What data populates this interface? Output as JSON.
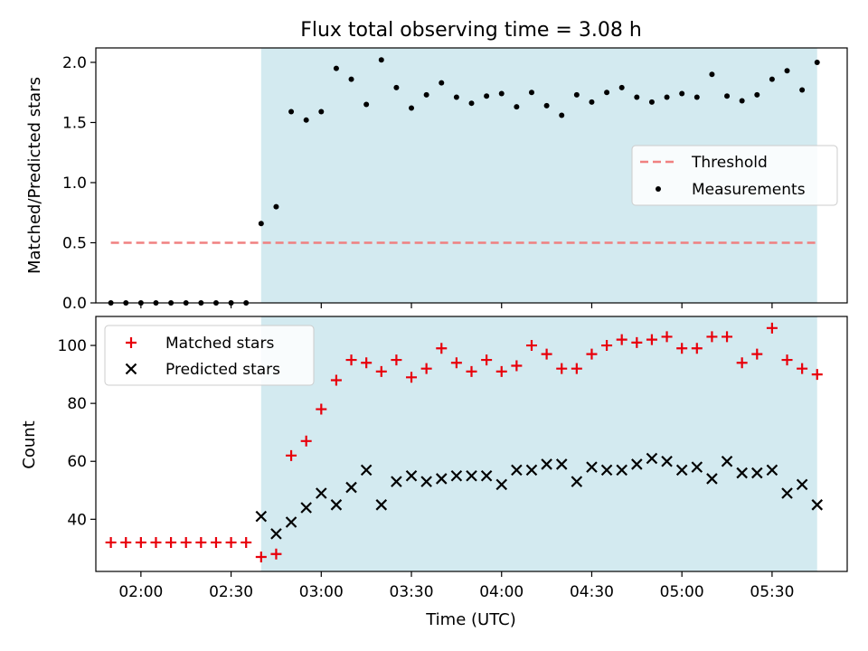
{
  "chart_data": [
    {
      "type": "scatter",
      "title": "Flux total observing time = 3.08 h",
      "xlabel": "",
      "ylabel": "Matched/Predicted stars",
      "xlim": [
        "01:45",
        "05:55"
      ],
      "ylim": [
        0,
        2.12
      ],
      "yticks": [
        "0.0",
        "0.5",
        "1.0",
        "1.5",
        "2.0"
      ],
      "grid": false,
      "legend_position": "center-right",
      "shaded_span": {
        "from": "02:40",
        "to": "05:45",
        "color": "#d3eaf0"
      },
      "threshold": {
        "name": "Threshold",
        "value": 0.5,
        "x_from": "01:50",
        "x_to": "05:45",
        "color": "#f08080"
      },
      "series": [
        {
          "name": "Measurements",
          "marker": "dot",
          "color": "#000000",
          "x": [
            "01:50",
            "01:55",
            "02:00",
            "02:05",
            "02:10",
            "02:15",
            "02:20",
            "02:25",
            "02:30",
            "02:35",
            "02:40",
            "02:45",
            "02:50",
            "02:55",
            "03:00",
            "03:05",
            "03:10",
            "03:15",
            "03:20",
            "03:25",
            "03:30",
            "03:35",
            "03:40",
            "03:45",
            "03:50",
            "03:55",
            "04:00",
            "04:05",
            "04:10",
            "04:15",
            "04:20",
            "04:25",
            "04:30",
            "04:35",
            "04:40",
            "04:45",
            "04:50",
            "04:55",
            "05:00",
            "05:05",
            "05:10",
            "05:15",
            "05:20",
            "05:25",
            "05:30",
            "05:35",
            "05:40",
            "05:45"
          ],
          "y": [
            0,
            0,
            0,
            0,
            0,
            0,
            0,
            0,
            0,
            0,
            0.66,
            0.8,
            1.59,
            1.52,
            1.59,
            1.95,
            1.86,
            1.65,
            2.02,
            1.79,
            1.62,
            1.73,
            1.83,
            1.71,
            1.66,
            1.72,
            1.74,
            1.63,
            1.75,
            1.64,
            1.56,
            1.73,
            1.67,
            1.75,
            1.79,
            1.71,
            1.67,
            1.71,
            1.74,
            1.71,
            1.9,
            1.72,
            1.68,
            1.73,
            1.86,
            1.93,
            1.77,
            2.0
          ]
        }
      ]
    },
    {
      "type": "scatter",
      "title": "",
      "xlabel": "Time (UTC)",
      "ylabel": "Count",
      "xlim": [
        "01:45",
        "05:55"
      ],
      "ylim": [
        22,
        110
      ],
      "yticks": [
        "40",
        "60",
        "80",
        "100"
      ],
      "xticks": [
        "02:00",
        "02:30",
        "03:00",
        "03:30",
        "04:00",
        "04:30",
        "05:00",
        "05:30"
      ],
      "grid": false,
      "legend_position": "top-left",
      "shaded_span": {
        "from": "02:40",
        "to": "05:45",
        "color": "#d3eaf0"
      },
      "series": [
        {
          "name": "Matched stars",
          "marker": "plus",
          "color": "#e8000b",
          "x": [
            "01:50",
            "01:55",
            "02:00",
            "02:05",
            "02:10",
            "02:15",
            "02:20",
            "02:25",
            "02:30",
            "02:35",
            "02:40",
            "02:45",
            "02:50",
            "02:55",
            "03:00",
            "03:05",
            "03:10",
            "03:15",
            "03:20",
            "03:25",
            "03:30",
            "03:35",
            "03:40",
            "03:45",
            "03:50",
            "03:55",
            "04:00",
            "04:05",
            "04:10",
            "04:15",
            "04:20",
            "04:25",
            "04:30",
            "04:35",
            "04:40",
            "04:45",
            "04:50",
            "04:55",
            "05:00",
            "05:05",
            "05:10",
            "05:15",
            "05:20",
            "05:25",
            "05:30",
            "05:35",
            "05:40",
            "05:45"
          ],
          "y": [
            32,
            32,
            32,
            32,
            32,
            32,
            32,
            32,
            32,
            32,
            27,
            28,
            62,
            67,
            78,
            88,
            95,
            94,
            91,
            95,
            89,
            92,
            99,
            94,
            91,
            95,
            91,
            93,
            100,
            97,
            92,
            92,
            97,
            100,
            102,
            101,
            102,
            103,
            99,
            99,
            103,
            103,
            94,
            97,
            106,
            95,
            92,
            90
          ]
        },
        {
          "name": "Predicted stars",
          "marker": "x",
          "color": "#000000",
          "x": [
            "02:40",
            "02:45",
            "02:50",
            "02:55",
            "03:00",
            "03:05",
            "03:10",
            "03:15",
            "03:20",
            "03:25",
            "03:30",
            "03:35",
            "03:40",
            "03:45",
            "03:50",
            "03:55",
            "04:00",
            "04:05",
            "04:10",
            "04:15",
            "04:20",
            "04:25",
            "04:30",
            "04:35",
            "04:40",
            "04:45",
            "04:50",
            "04:55",
            "05:00",
            "05:05",
            "05:10",
            "05:15",
            "05:20",
            "05:25",
            "05:30",
            "05:35",
            "05:40",
            "05:45"
          ],
          "y": [
            41,
            35,
            39,
            44,
            49,
            45,
            51,
            57,
            45,
            53,
            55,
            53,
            54,
            55,
            55,
            55,
            52,
            57,
            57,
            59,
            59,
            53,
            58,
            57,
            57,
            59,
            61,
            60,
            57,
            58,
            54,
            60,
            56,
            56,
            57,
            49,
            52,
            45
          ]
        }
      ]
    }
  ]
}
